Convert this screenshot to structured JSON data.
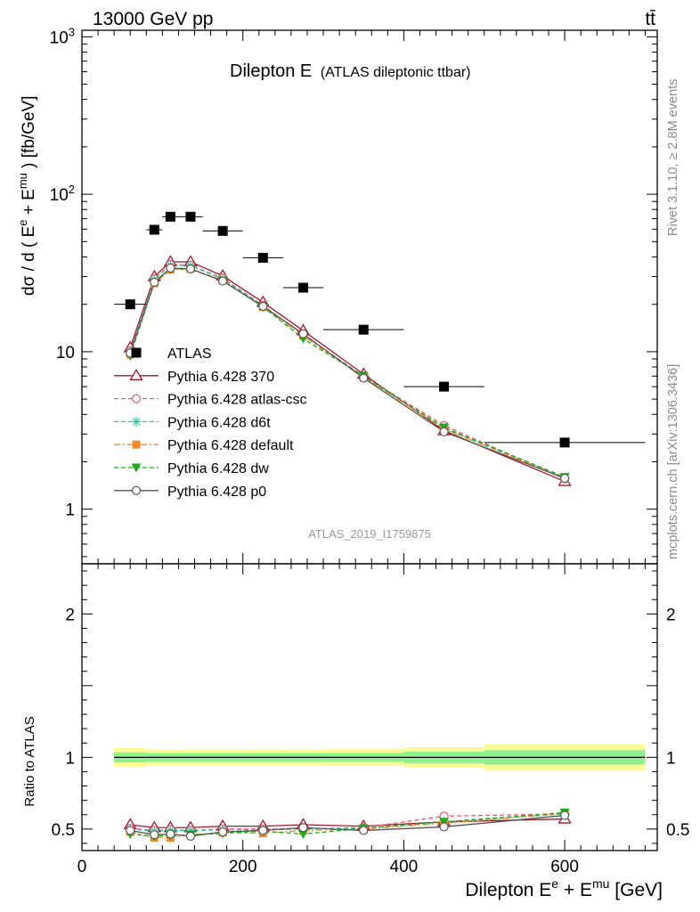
{
  "header": {
    "energy_label": "13000 GeV pp",
    "process_label": "tt̄",
    "title_main": "Dilepton E",
    "title_sub": "(ATLAS dileptonic ttbar)",
    "analysis_id": "ATLAS_2019_I1759875",
    "side_top": "Rivet 3.1.10, ≥ 2.8M events",
    "side_bottom": "mcplots.cern.ch [arXiv:1306.3436]"
  },
  "chart_data": [
    {
      "type": "scatter",
      "panel": "main",
      "ylabel": "dσ / d ( Eᵉ + Eᵐᵘ ) [fb/GeV]",
      "yscale": "log",
      "ylim": [
        0.45,
        1100
      ],
      "yticks": [
        1,
        10,
        100,
        1000
      ],
      "ytick_labels": [
        "1",
        "10",
        "10²",
        "10³"
      ],
      "xlim": [
        0,
        715
      ],
      "x": [
        60,
        90,
        110,
        135,
        175,
        225,
        275,
        350,
        450,
        600
      ],
      "data": {
        "name": "ATLAS",
        "values": [
          20.0,
          59.5,
          72.0,
          72.0,
          58.5,
          39.5,
          25.5,
          13.8,
          6.0,
          2.65
        ],
        "x_err": [
          20,
          10,
          10,
          15,
          25,
          25,
          25,
          50,
          50,
          100
        ]
      },
      "series": [
        {
          "name": "Pythia 6.428 370",
          "color": "#a0182c",
          "dash": "",
          "marker": "triangle-open",
          "values": [
            10.6,
            30.0,
            37.2,
            37.2,
            30.3,
            20.6,
            13.6,
            7.2,
            3.15,
            1.5
          ]
        },
        {
          "name": "Pythia 6.428 atlas-csc",
          "color": "#f0557a",
          "dash": "5,3",
          "marker": "circle-open",
          "values": [
            10.1,
            29.0,
            35.8,
            35.4,
            29.3,
            19.7,
            12.8,
            7.0,
            3.4,
            1.56
          ]
        },
        {
          "name": "Pythia 6.428 d6t",
          "color": "#29c8a0",
          "dash": "5,3",
          "marker": "star",
          "values": [
            10.0,
            28.8,
            35.5,
            35.2,
            29.0,
            19.6,
            12.8,
            6.95,
            3.25,
            1.57
          ]
        },
        {
          "name": "Pythia 6.428 default",
          "color": "#f58a2b",
          "dash": "7,3,2,3",
          "marker": "square",
          "values": [
            9.6,
            27.2,
            33.2,
            33.6,
            28.4,
            19.2,
            12.6,
            6.9,
            3.22,
            1.58
          ]
        },
        {
          "name": "Pythia 6.428 dw",
          "color": "#1faa1f",
          "dash": "5,3",
          "marker": "triangle-down",
          "values": [
            9.4,
            27.5,
            33.6,
            33.4,
            28.3,
            19.3,
            12.1,
            7.0,
            3.3,
            1.6
          ]
        },
        {
          "name": "Pythia 6.428 p0",
          "color": "#555555",
          "dash": "",
          "marker": "circle-open",
          "values": [
            9.8,
            27.6,
            34.0,
            33.6,
            28.1,
            19.4,
            13.0,
            6.8,
            3.1,
            1.57
          ]
        }
      ]
    },
    {
      "type": "line",
      "panel": "ratio",
      "ylabel": "Ratio to ATLAS",
      "xlabel": "Dilepton Eᵉ + Eᵐᵘ [GeV]",
      "ylim": [
        0.35,
        2.35
      ],
      "yticks": [
        0.5,
        1,
        2
      ],
      "ytick_labels": [
        "0.5",
        "1",
        "2"
      ],
      "xlim": [
        0,
        715
      ],
      "xticks": [
        0,
        200,
        400,
        600
      ],
      "xtick_labels": [
        "0",
        "200",
        "400",
        "600"
      ],
      "band_bins": [
        {
          "x0": 40,
          "x1": 80,
          "inner": 0.035,
          "outer": 0.065
        },
        {
          "x0": 80,
          "x1": 100,
          "inner": 0.03,
          "outer": 0.055
        },
        {
          "x0": 100,
          "x1": 120,
          "inner": 0.03,
          "outer": 0.055
        },
        {
          "x0": 120,
          "x1": 150,
          "inner": 0.03,
          "outer": 0.055
        },
        {
          "x0": 150,
          "x1": 200,
          "inner": 0.03,
          "outer": 0.055
        },
        {
          "x0": 200,
          "x1": 250,
          "inner": 0.03,
          "outer": 0.055
        },
        {
          "x0": 250,
          "x1": 300,
          "inner": 0.03,
          "outer": 0.055
        },
        {
          "x0": 300,
          "x1": 400,
          "inner": 0.03,
          "outer": 0.06
        },
        {
          "x0": 400,
          "x1": 500,
          "inner": 0.04,
          "outer": 0.07
        },
        {
          "x0": 500,
          "x1": 700,
          "inner": 0.05,
          "outer": 0.09
        }
      ],
      "series": [
        {
          "name": "Pythia 6.428 370",
          "values": [
            0.53,
            0.51,
            0.51,
            0.51,
            0.52,
            0.52,
            0.53,
            0.52,
            0.55,
            0.57
          ]
        },
        {
          "name": "Pythia 6.428 atlas-csc",
          "values": [
            0.505,
            0.49,
            0.495,
            0.49,
            0.5,
            0.5,
            0.5,
            0.51,
            0.59,
            0.605
          ]
        },
        {
          "name": "Pythia 6.428 d6t",
          "values": [
            0.5,
            0.485,
            0.49,
            0.49,
            0.495,
            0.495,
            0.5,
            0.505,
            0.55,
            0.605
          ]
        },
        {
          "name": "Pythia 6.428 default",
          "values": [
            0.48,
            0.44,
            0.44,
            0.46,
            0.475,
            0.47,
            0.49,
            0.5,
            0.54,
            0.61
          ]
        },
        {
          "name": "Pythia 6.428 dw",
          "values": [
            0.465,
            0.45,
            0.455,
            0.46,
            0.47,
            0.485,
            0.465,
            0.505,
            0.55,
            0.615
          ]
        },
        {
          "name": "Pythia 6.428 p0",
          "values": [
            0.49,
            0.46,
            0.465,
            0.45,
            0.48,
            0.49,
            0.51,
            0.49,
            0.515,
            0.595
          ]
        }
      ]
    }
  ]
}
